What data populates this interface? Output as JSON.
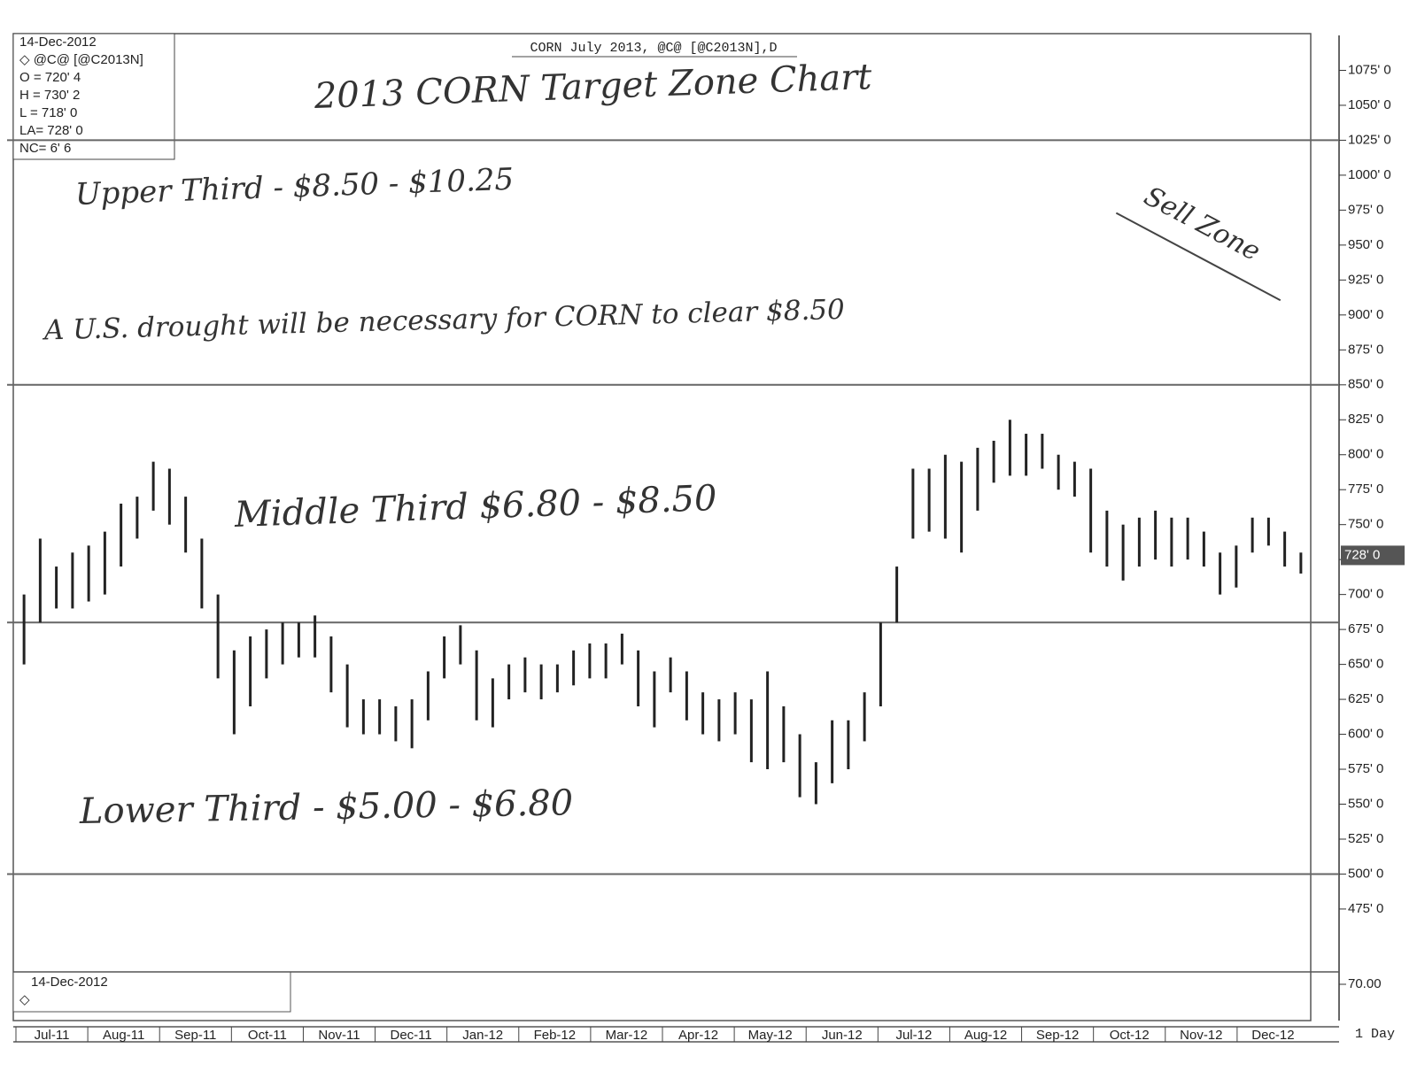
{
  "chart_data": {
    "type": "ohlc",
    "header": "CORN July 2013, @C@ [@C2013N],D",
    "title": "2013 CORN Target Zone Chart",
    "info_box": [
      "14-Dec-2012",
      "◇ @C@ [@C2013N]",
      "O = 720' 4",
      "H = 730' 2",
      "L = 718' 0",
      "LA= 728' 0",
      "NC= 6' 6"
    ],
    "annotations": {
      "upper": "Upper Third - $8.50 - $10.25",
      "sell": "Sell Zone",
      "drought": "A U.S. drought will be necessary for CORN to clear $8.50",
      "middle": "Middle Third $6.80 - $8.50",
      "lower": "Lower Third - $5.00 - $6.80"
    },
    "levels": [
      1025,
      850,
      680,
      500
    ],
    "categories": [
      "Jul-11",
      "Aug-11",
      "Sep-11",
      "Oct-11",
      "Nov-11",
      "Dec-11",
      "Jan-12",
      "Feb-12",
      "Mar-12",
      "Apr-12",
      "May-12",
      "Jun-12",
      "Jul-12",
      "Aug-12",
      "Sep-12",
      "Oct-12",
      "Nov-12",
      "Dec-12"
    ],
    "lows": [
      650,
      680,
      690,
      690,
      695,
      700,
      720,
      740,
      760,
      750,
      730,
      690,
      640,
      600,
      620,
      640,
      650,
      655,
      655,
      630,
      605,
      600,
      600,
      595,
      590,
      610,
      640,
      650,
      610,
      605,
      625,
      630,
      625,
      630,
      635,
      640,
      640,
      650,
      620,
      605,
      630,
      610,
      600,
      595,
      600,
      580,
      575,
      580,
      555,
      550,
      565,
      575,
      595,
      620,
      680,
      740,
      745,
      740,
      730,
      760,
      780,
      785,
      785,
      790,
      775,
      770,
      730,
      720,
      710,
      720,
      725,
      720,
      725,
      720,
      700,
      705,
      730,
      735,
      720,
      715
    ],
    "highs": [
      700,
      740,
      720,
      730,
      735,
      745,
      765,
      770,
      795,
      790,
      770,
      740,
      700,
      660,
      670,
      675,
      680,
      680,
      685,
      670,
      650,
      625,
      625,
      620,
      625,
      645,
      670,
      678,
      660,
      640,
      650,
      655,
      650,
      650,
      660,
      665,
      665,
      672,
      660,
      645,
      655,
      645,
      630,
      625,
      630,
      625,
      645,
      620,
      600,
      580,
      610,
      610,
      630,
      680,
      720,
      790,
      790,
      800,
      795,
      805,
      810,
      825,
      815,
      815,
      800,
      795,
      790,
      760,
      750,
      755,
      760,
      755,
      755,
      745,
      730,
      735,
      755,
      755,
      745,
      730
    ],
    "color": "#222222",
    "ylim": [
      449,
      1100
    ],
    "yticks": [
      {
        "value": 475,
        "label": "475' 0"
      },
      {
        "value": 500,
        "label": "500' 0"
      },
      {
        "value": 525,
        "label": "525' 0"
      },
      {
        "value": 550,
        "label": "550' 0"
      },
      {
        "value": 575,
        "label": "575' 0"
      },
      {
        "value": 600,
        "label": "600' 0"
      },
      {
        "value": 625,
        "label": "625' 0"
      },
      {
        "value": 650,
        "label": "650' 0"
      },
      {
        "value": 675,
        "label": "675' 0"
      },
      {
        "value": 700,
        "label": "700' 0"
      },
      {
        "value": 725,
        "label": "725' 0"
      },
      {
        "value": 750,
        "label": "750' 0"
      },
      {
        "value": 775,
        "label": "775' 0"
      },
      {
        "value": 800,
        "label": "800' 0"
      },
      {
        "value": 825,
        "label": "825' 0"
      },
      {
        "value": 850,
        "label": "850' 0"
      },
      {
        "value": 875,
        "label": "875' 0"
      },
      {
        "value": 900,
        "label": "900' 0"
      },
      {
        "value": 925,
        "label": "925' 0"
      },
      {
        "value": 950,
        "label": "950' 0"
      },
      {
        "value": 975,
        "label": "975' 0"
      },
      {
        "value": 1000,
        "label": "1000' 0"
      },
      {
        "value": 1025,
        "label": "1025' 0"
      },
      {
        "value": 1050,
        "label": "1050' 0"
      },
      {
        "value": 1075,
        "label": "1075' 0"
      }
    ],
    "last_price": {
      "value": 728,
      "label": "728' 0"
    },
    "lower_panel": {
      "date": "14-Dec-2012",
      "tick": {
        "value": 70,
        "label": "70.00"
      }
    },
    "interval": "1 Day"
  }
}
